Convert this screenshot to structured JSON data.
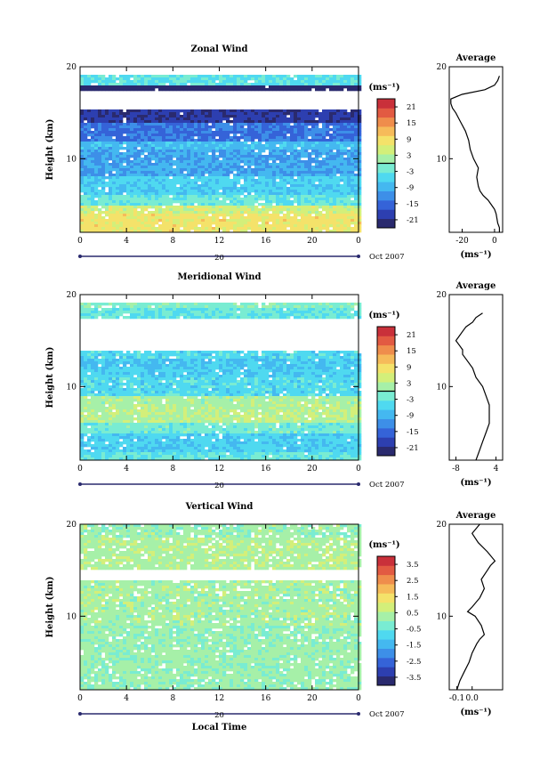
{
  "colors": {
    "colormap": [
      "#2a2a6e",
      "#2d3fb0",
      "#3563d8",
      "#3d8fe8",
      "#44b8f0",
      "#4fd9f0",
      "#79ecd2",
      "#a6f0a8",
      "#d3ef7a",
      "#f4e26a",
      "#f6bb5a",
      "#ef8d4c",
      "#e25a42",
      "#c9303a"
    ],
    "contour": "#000000",
    "axis": "#000000",
    "time_axis": "#2a2a6e"
  },
  "chart_data": [
    {
      "type": "heatmap",
      "title": "Zonal Wind",
      "ylabel": "Height (km)",
      "xlabel": "",
      "x_ticks": [
        "0",
        "4",
        "8",
        "12",
        "16",
        "20",
        "0"
      ],
      "y_ticks": [
        "20",
        "10"
      ],
      "ylim": [
        2,
        20
      ],
      "xlim": [
        0,
        24
      ],
      "date_center": "20",
      "date_right": "Oct 2007",
      "colorbar": {
        "unit": "(ms⁻¹)",
        "ticks": [
          "21",
          "15",
          "9",
          "3",
          "-3",
          "-9",
          "-15",
          "-21"
        ],
        "range": [
          -24,
          24
        ],
        "zero_line": true
      },
      "layers": [
        {
          "h": [
            2,
            4
          ],
          "value": 8
        },
        {
          "h": [
            4,
            5
          ],
          "value": 5
        },
        {
          "h": [
            5,
            6
          ],
          "value": -3
        },
        {
          "h": [
            6,
            8
          ],
          "value": -6
        },
        {
          "h": [
            8,
            11
          ],
          "value": -10
        },
        {
          "h": [
            11,
            12
          ],
          "value": -8
        },
        {
          "h": [
            12,
            14
          ],
          "value": -14
        },
        {
          "h": [
            14,
            15.5
          ],
          "value": -20
        },
        {
          "h": [
            17.5,
            18
          ],
          "value": -24
        },
        {
          "h": [
            18,
            19
          ],
          "value": -4
        }
      ],
      "profile": {
        "title": "Average",
        "x_ticks": [
          "-20",
          "0"
        ],
        "xlim": [
          -28,
          5
        ],
        "unit": "(ms⁻¹)",
        "x": [
          3,
          3,
          2,
          1,
          0,
          -2,
          -4,
          -7,
          -9,
          -10,
          -11,
          -10,
          -13,
          -15,
          -16,
          -18,
          -21,
          -24,
          -26,
          -27,
          -27,
          -20,
          -6,
          0,
          2,
          3
        ],
        "y": [
          2,
          2.5,
          3,
          4,
          4.5,
          5,
          5.5,
          6,
          6.5,
          7,
          8,
          9,
          10,
          11,
          12,
          13,
          14,
          15,
          15.5,
          16,
          16.5,
          17,
          17.5,
          18,
          18.5,
          19
        ]
      }
    },
    {
      "type": "heatmap",
      "title": "Meridional Wind",
      "ylabel": "Height (km)",
      "xlabel": "",
      "x_ticks": [
        "0",
        "4",
        "8",
        "12",
        "16",
        "20",
        "0"
      ],
      "y_ticks": [
        "20",
        "10"
      ],
      "ylim": [
        2,
        20
      ],
      "xlim": [
        0,
        24
      ],
      "date_center": "20",
      "date_right": "Oct 2007",
      "colorbar": {
        "unit": "(ms⁻¹)",
        "ticks": [
          "21",
          "15",
          "9",
          "3",
          "-3",
          "-9",
          "-15",
          "-21"
        ],
        "range": [
          -24,
          24
        ],
        "zero_line": true
      },
      "layers": [
        {
          "h": [
            2,
            3
          ],
          "value": -3
        },
        {
          "h": [
            3,
            5
          ],
          "value": -6
        },
        {
          "h": [
            5,
            6
          ],
          "value": -2
        },
        {
          "h": [
            6,
            8
          ],
          "value": 3
        },
        {
          "h": [
            8,
            9
          ],
          "value": 2
        },
        {
          "h": [
            9,
            11
          ],
          "value": -5
        },
        {
          "h": [
            11,
            12
          ],
          "value": -6
        },
        {
          "h": [
            12,
            13
          ],
          "value": -7
        },
        {
          "h": [
            13,
            14
          ],
          "value": -5
        },
        {
          "h": [
            17.5,
            18.5
          ],
          "value": -3
        },
        {
          "h": [
            18.5,
            19
          ],
          "value": -1
        }
      ],
      "profile": {
        "title": "Average",
        "x_ticks": [
          "-8",
          "4"
        ],
        "xlim": [
          -10,
          6
        ],
        "unit": "(ms⁻¹)",
        "x": [
          -2,
          -1,
          0,
          1,
          2,
          2,
          2,
          1,
          0,
          -2,
          -3,
          -5,
          -6,
          -6,
          -7,
          -8,
          -7,
          -6,
          -5,
          -3,
          -2,
          0
        ],
        "y": [
          2,
          3,
          4,
          5,
          6,
          7,
          8,
          9,
          10,
          11,
          12,
          13,
          13.5,
          14,
          14.5,
          15,
          15.5,
          16,
          16.5,
          17,
          17.5,
          18
        ]
      }
    },
    {
      "type": "heatmap",
      "title": "Vertical Wind",
      "ylabel": "Height (km)",
      "xlabel": "Local Time",
      "x_ticks": [
        "0",
        "4",
        "8",
        "12",
        "16",
        "20",
        "0"
      ],
      "y_ticks": [
        "20",
        "10"
      ],
      "ylim": [
        2,
        20
      ],
      "xlim": [
        0,
        24
      ],
      "date_center": "20",
      "date_right": "Oct 2007",
      "colorbar": {
        "unit": "(ms⁻¹)",
        "ticks": [
          "3.5",
          "2.5",
          "1.5",
          "0.5",
          "-0.5",
          "-1.5",
          "-2.5",
          "-3.5"
        ],
        "range": [
          -4,
          4
        ],
        "zero_line": false
      },
      "layers": [
        {
          "h": [
            2,
            9
          ],
          "value": 0.15
        },
        {
          "h": [
            9,
            14
          ],
          "value": 0.3
        },
        {
          "h": [
            15,
            18.5
          ],
          "value": 0.4
        },
        {
          "h": [
            18.5,
            20
          ],
          "value": 0.2
        }
      ],
      "profile": {
        "title": "Average",
        "x_ticks": [
          "-0.1",
          "0.0"
        ],
        "xlim": [
          -0.15,
          0.2
        ],
        "unit": "(ms⁻¹)",
        "x": [
          -0.1,
          -0.08,
          -0.05,
          -0.02,
          0.0,
          0.03,
          0.05,
          0.08,
          0.06,
          0.02,
          -0.03,
          0.0,
          0.05,
          0.08,
          0.06,
          0.1,
          0.12,
          0.15,
          0.1,
          0.04,
          0.0,
          0.05
        ],
        "y": [
          2,
          3,
          4,
          5,
          6,
          7,
          7.5,
          8,
          9,
          10,
          10.5,
          11,
          12,
          13,
          14,
          15,
          15.5,
          16,
          17,
          18,
          19,
          20
        ]
      }
    }
  ]
}
